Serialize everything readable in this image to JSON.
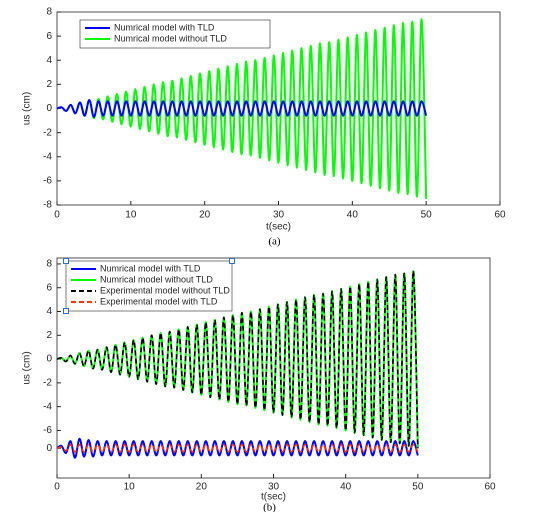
{
  "chart_data": [
    {
      "type": "line",
      "caption": "(a)",
      "xlabel": "t(sec)",
      "ylabel": "us (cm)",
      "legend": "upper left",
      "xlim": [
        0,
        60
      ],
      "xticks": [
        0,
        10,
        20,
        30,
        40,
        50,
        60
      ],
      "ylim": [
        -8,
        8
      ],
      "yticks": [
        -8,
        -6,
        -4,
        -2,
        0,
        2,
        4,
        6,
        8
      ],
      "x": [
        0,
        0.625,
        1.25,
        1.875,
        2.5,
        3.125,
        3.75,
        4.375,
        5,
        5.625,
        6.25,
        6.875,
        7.5,
        8.125,
        8.75,
        9.375,
        10,
        10.625,
        11.25,
        11.875,
        12.5,
        13.125,
        13.75,
        14.375,
        15,
        15.625,
        16.25,
        16.875,
        17.5,
        18.125,
        18.75,
        19.375,
        20,
        20.625,
        21.25,
        21.875,
        22.5,
        23.125,
        23.75,
        24.375,
        25,
        25.625,
        26.25,
        26.875,
        27.5,
        28.125,
        28.75,
        29.375,
        30,
        30.625,
        31.25,
        31.875,
        32.5,
        33.125,
        33.75,
        34.375,
        35,
        35.625,
        36.25,
        36.875,
        37.5,
        38.125,
        38.75,
        39.375,
        40,
        40.625,
        41.25,
        41.875,
        42.5,
        43.125,
        43.75,
        44.375,
        45,
        45.625,
        46.25,
        46.875,
        47.5,
        48.125,
        48.75,
        49.375,
        50
      ],
      "series": [
        {
          "name": "Numrical model without TLD",
          "color": "#00ff00",
          "dash": false,
          "values": [
            0,
            0.1,
            -0.2,
            0.3,
            -0.4,
            0.5,
            -0.6,
            0.7,
            -0.8,
            0.8,
            -0.9,
            1.0,
            -1.1,
            1.2,
            -1.3,
            1.4,
            -1.5,
            1.6,
            -1.7,
            1.8,
            -1.9,
            2.0,
            -2.1,
            2.2,
            -2.3,
            2.3,
            -2.4,
            2.5,
            -2.6,
            2.7,
            -2.8,
            2.9,
            -3.0,
            3.1,
            -3.2,
            3.3,
            -3.4,
            3.5,
            -3.6,
            3.7,
            -3.8,
            3.9,
            -3.9,
            4.0,
            -4.1,
            4.2,
            -4.3,
            4.4,
            -4.5,
            4.6,
            -4.7,
            4.8,
            -4.9,
            5.0,
            -5.1,
            5.2,
            -5.3,
            5.4,
            -5.5,
            5.5,
            -5.6,
            5.7,
            -5.8,
            5.9,
            -6.0,
            6.1,
            -6.2,
            6.3,
            -6.4,
            6.5,
            -6.6,
            6.7,
            -6.8,
            6.9,
            -7.0,
            7.1,
            -7.1,
            7.2,
            -7.3,
            7.4,
            -7.5
          ]
        },
        {
          "name": "Numrical model with TLD",
          "color": "#0000ff",
          "dash": false,
          "values": [
            0,
            0.1,
            -0.2,
            0.3,
            -0.4,
            0.5,
            -0.6,
            0.7,
            -0.7,
            0.6,
            -0.6,
            0.6,
            -0.6,
            0.6,
            -0.6,
            0.6,
            -0.6,
            0.6,
            -0.6,
            0.6,
            -0.6,
            0.6,
            -0.6,
            0.6,
            -0.6,
            0.6,
            -0.6,
            0.6,
            -0.6,
            0.6,
            -0.6,
            0.6,
            -0.6,
            0.6,
            -0.6,
            0.6,
            -0.6,
            0.6,
            -0.6,
            0.6,
            -0.6,
            0.6,
            -0.6,
            0.6,
            -0.6,
            0.6,
            -0.6,
            0.6,
            -0.6,
            0.6,
            -0.6,
            0.6,
            -0.6,
            0.6,
            -0.6,
            0.6,
            -0.6,
            0.6,
            -0.6,
            0.6,
            -0.6,
            0.6,
            -0.6,
            0.6,
            -0.6,
            0.6,
            -0.6,
            0.6,
            -0.6,
            0.6,
            -0.6,
            0.6,
            -0.6,
            0.6,
            -0.6,
            0.6,
            -0.6,
            0.6,
            -0.6,
            0.6,
            -0.6
          ]
        }
      ],
      "legend_order": [
        1,
        0
      ]
    },
    {
      "type": "line",
      "caption": "(b)",
      "xlabel": "t(sec)",
      "ylabel": "us (cm)",
      "legend": "upper left",
      "xlim": [
        0,
        60
      ],
      "xticks": [
        0,
        10,
        20,
        30,
        40,
        50,
        60
      ],
      "ylim": [
        -10,
        8.5
      ],
      "yticks": [
        -6,
        -4,
        -2,
        0,
        2,
        4,
        6,
        8
      ],
      "y2lim": [
        -2.5,
        16
      ],
      "y2ticks": [
        0
      ],
      "x": [
        0,
        0.625,
        1.25,
        1.875,
        2.5,
        3.125,
        3.75,
        4.375,
        5,
        5.625,
        6.25,
        6.875,
        7.5,
        8.125,
        8.75,
        9.375,
        10,
        10.625,
        11.25,
        11.875,
        12.5,
        13.125,
        13.75,
        14.375,
        15,
        15.625,
        16.25,
        16.875,
        17.5,
        18.125,
        18.75,
        19.375,
        20,
        20.625,
        21.25,
        21.875,
        22.5,
        23.125,
        23.75,
        24.375,
        25,
        25.625,
        26.25,
        26.875,
        27.5,
        28.125,
        28.75,
        29.375,
        30,
        30.625,
        31.25,
        31.875,
        32.5,
        33.125,
        33.75,
        34.375,
        35,
        35.625,
        36.25,
        36.875,
        37.5,
        38.125,
        38.75,
        39.375,
        40,
        40.625,
        41.25,
        41.875,
        42.5,
        43.125,
        43.75,
        44.375,
        45,
        45.625,
        46.25,
        46.875,
        47.5,
        48.125,
        48.75,
        49.375,
        50
      ],
      "series": [
        {
          "name": "Numrical model without TLD",
          "color": "#00ff00",
          "dash": false,
          "values": [
            0,
            0.1,
            -0.2,
            0.3,
            -0.4,
            0.5,
            -0.6,
            0.7,
            -0.8,
            0.8,
            -0.9,
            1.0,
            -1.1,
            1.2,
            -1.3,
            1.4,
            -1.5,
            1.6,
            -1.7,
            1.8,
            -1.9,
            2.0,
            -2.1,
            2.2,
            -2.3,
            2.3,
            -2.4,
            2.5,
            -2.6,
            2.7,
            -2.8,
            2.9,
            -3.0,
            3.1,
            -3.2,
            3.3,
            -3.4,
            3.5,
            -3.6,
            3.7,
            -3.8,
            3.9,
            -3.9,
            4.0,
            -4.1,
            4.2,
            -4.3,
            4.4,
            -4.5,
            4.6,
            -4.7,
            4.8,
            -4.9,
            5.0,
            -5.1,
            5.2,
            -5.3,
            5.4,
            -5.5,
            5.5,
            -5.6,
            5.7,
            -5.8,
            5.9,
            -6.0,
            6.1,
            -6.2,
            6.3,
            -6.4,
            6.5,
            -6.6,
            6.7,
            -6.8,
            6.9,
            -7.0,
            7.1,
            -7.1,
            7.2,
            -7.3,
            7.4,
            -7.5
          ]
        },
        {
          "name": "Experimental model without TLD",
          "color": "#000000",
          "dash": true,
          "values": [
            0,
            0.1,
            -0.2,
            0.3,
            -0.4,
            0.5,
            -0.6,
            0.7,
            -0.8,
            0.8,
            -0.9,
            1.0,
            -1.1,
            1.2,
            -1.3,
            1.4,
            -1.5,
            1.6,
            -1.7,
            1.8,
            -1.9,
            2.0,
            -2.1,
            2.2,
            -2.3,
            2.3,
            -2.4,
            2.5,
            -2.6,
            2.7,
            -2.8,
            2.9,
            -3.0,
            3.1,
            -3.2,
            3.3,
            -3.4,
            3.5,
            -3.6,
            3.7,
            -3.8,
            3.9,
            -3.9,
            4.0,
            -4.1,
            4.2,
            -4.3,
            4.4,
            -4.5,
            4.6,
            -4.7,
            4.8,
            -4.9,
            5.0,
            -5.1,
            5.2,
            -5.3,
            5.4,
            -5.5,
            5.5,
            -5.6,
            5.7,
            -5.8,
            5.9,
            -6.0,
            6.1,
            -6.2,
            6.3,
            -6.4,
            6.5,
            -6.6,
            6.7,
            -6.8,
            6.9,
            -7.0,
            7.1,
            -7.1,
            7.2,
            -7.3,
            7.4,
            -7.5
          ]
        },
        {
          "name": "Numrical model with TLD",
          "color": "#0000ff",
          "dash": false,
          "axis": "y2",
          "values": [
            0,
            0.2,
            -0.4,
            0.6,
            -0.8,
            0.8,
            -0.7,
            0.7,
            -0.7,
            0.6,
            -0.6,
            0.6,
            -0.6,
            0.6,
            -0.6,
            0.6,
            -0.6,
            0.6,
            -0.6,
            0.6,
            -0.6,
            0.6,
            -0.6,
            0.6,
            -0.6,
            0.6,
            -0.6,
            0.6,
            -0.6,
            0.6,
            -0.6,
            0.6,
            -0.6,
            0.6,
            -0.6,
            0.6,
            -0.6,
            0.6,
            -0.6,
            0.6,
            -0.6,
            0.6,
            -0.6,
            0.6,
            -0.6,
            0.6,
            -0.6,
            0.6,
            -0.6,
            0.6,
            -0.6,
            0.6,
            -0.6,
            0.6,
            -0.6,
            0.6,
            -0.6,
            0.6,
            -0.6,
            0.6,
            -0.6,
            0.6,
            -0.6,
            0.6,
            -0.6,
            0.6,
            -0.6,
            0.6,
            -0.6,
            0.6,
            -0.6,
            0.6,
            -0.6,
            0.6,
            -0.6,
            0.6,
            -0.6,
            0.6,
            -0.6,
            0.6,
            -0.6
          ]
        },
        {
          "name": "Experimental model with TLD",
          "color": "#ff3300",
          "dash": true,
          "axis": "y2",
          "values": [
            0,
            0.1,
            -0.2,
            0.3,
            -0.3,
            0.3,
            -0.3,
            0.3,
            -0.3,
            0.3,
            -0.3,
            0.3,
            -0.3,
            0.3,
            -0.3,
            0.3,
            -0.3,
            0.3,
            -0.3,
            0.3,
            -0.3,
            0.3,
            -0.3,
            0.3,
            -0.3,
            0.3,
            -0.3,
            0.3,
            -0.3,
            0.3,
            -0.3,
            0.3,
            -0.3,
            0.3,
            -0.3,
            0.3,
            -0.3,
            0.3,
            -0.3,
            0.3,
            -0.3,
            0.3,
            -0.3,
            0.3,
            -0.3,
            0.3,
            -0.3,
            0.3,
            -0.3,
            0.3,
            -0.3,
            0.3,
            -0.3,
            0.3,
            -0.3,
            0.3,
            -0.3,
            0.3,
            -0.3,
            0.3,
            -0.3,
            0.3,
            -0.3,
            0.3,
            -0.3,
            0.3,
            -0.3,
            0.3,
            -0.3,
            0.3,
            -0.3,
            0.3,
            -0.3,
            0.3,
            -0.3,
            0.3,
            -0.3,
            0.3,
            -0.3,
            0.3,
            -0.3
          ]
        }
      ],
      "legend_order": [
        2,
        0,
        1,
        3
      ]
    }
  ]
}
